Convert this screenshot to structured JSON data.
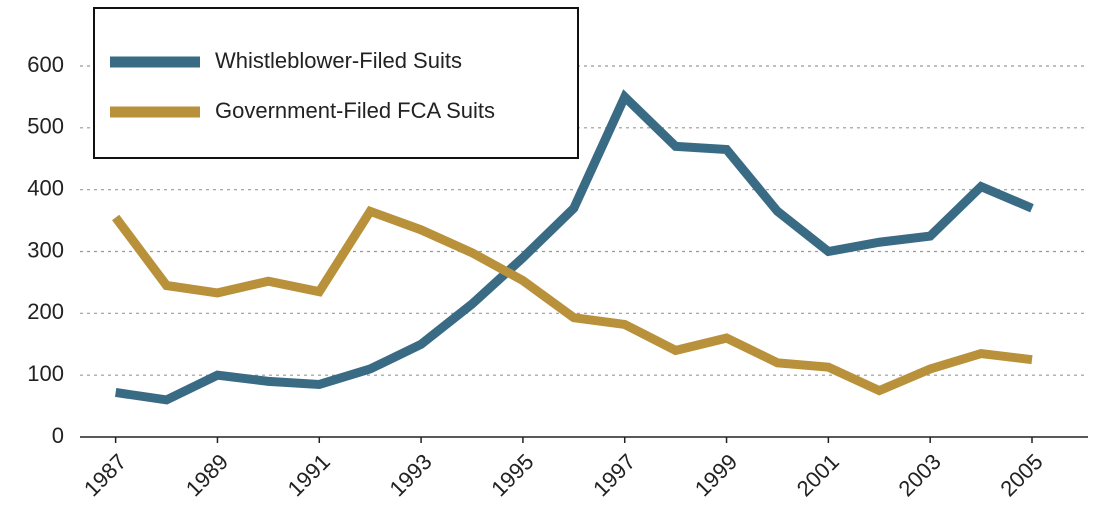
{
  "chart_data": {
    "type": "line",
    "x": [
      1987,
      1988,
      1989,
      1990,
      1991,
      1992,
      1993,
      1994,
      1995,
      1996,
      1997,
      1998,
      1999,
      2000,
      2001,
      2002,
      2003,
      2004,
      2005
    ],
    "series": [
      {
        "name": "Whistleblower-Filed Suits",
        "color": "#3a6b85",
        "values": [
          72,
          60,
          100,
          90,
          85,
          110,
          150,
          215,
          290,
          370,
          550,
          470,
          465,
          365,
          300,
          315,
          325,
          405,
          370
        ]
      },
      {
        "name": "Government-Filed FCA Suits",
        "color": "#b8913a",
        "values": [
          355,
          245,
          233,
          252,
          235,
          365,
          335,
          298,
          253,
          193,
          182,
          140,
          160,
          120,
          113,
          75,
          110,
          135,
          125
        ]
      }
    ],
    "xlim": [
      1986.3,
      2006.1
    ],
    "xticks": [
      1987,
      1989,
      1991,
      1993,
      1995,
      1997,
      1999,
      2001,
      2003,
      2005
    ],
    "ylim": [
      0,
      600
    ],
    "yticks": [
      0,
      100,
      200,
      300,
      400,
      500,
      600
    ],
    "grid": true,
    "legend": "upper left"
  }
}
